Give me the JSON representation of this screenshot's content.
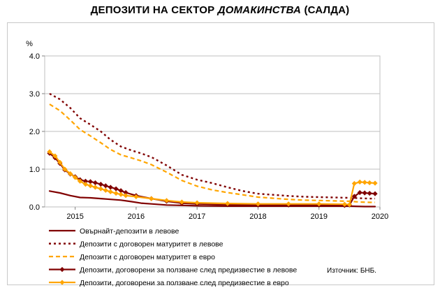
{
  "title": {
    "part1": "ДЕПОЗИТИ НА СЕКТОР ",
    "part2": "ДОМАКИНСТВА",
    "part3": " (САЛДА)"
  },
  "source": "Източник: БНБ.",
  "chart_data": {
    "type": "line",
    "title": "ДЕПОЗИТИ НА СЕКТОР ДОМАКИНСТВА (САЛДА)",
    "ylabel": "%",
    "ylim": [
      0,
      4.0
    ],
    "yticks": [
      "0.0",
      "1.0",
      "2.0",
      "3.0",
      "4.0"
    ],
    "xlim": [
      2014.5,
      2020.0
    ],
    "xticks": [
      "2015",
      "2016",
      "2017",
      "2018",
      "2019",
      "2020"
    ],
    "grid": true,
    "legend_position": "bottom",
    "series": [
      {
        "name": "Овърнайт-депозити в левове",
        "color": "#800000",
        "style": "solid",
        "x": [
          2014.58,
          2014.75,
          2014.92,
          2015.08,
          2015.25,
          2015.42,
          2015.58,
          2015.75,
          2015.92,
          2016.08,
          2016.25,
          2016.5,
          2016.75,
          2017.0,
          2017.5,
          2018.0,
          2018.5,
          2019.0,
          2019.5,
          2019.75,
          2019.92
        ],
        "values": [
          0.42,
          0.37,
          0.3,
          0.25,
          0.24,
          0.22,
          0.2,
          0.18,
          0.14,
          0.1,
          0.08,
          0.05,
          0.04,
          0.03,
          0.02,
          0.02,
          0.02,
          0.02,
          0.02,
          0.01,
          0.01
        ]
      },
      {
        "name": "Депозити с договорен матуритет в левове",
        "color": "#800000",
        "style": "dotted",
        "x": [
          2014.58,
          2014.75,
          2014.92,
          2015.08,
          2015.25,
          2015.42,
          2015.58,
          2015.75,
          2015.92,
          2016.08,
          2016.25,
          2016.5,
          2016.75,
          2017.0,
          2017.25,
          2017.5,
          2017.75,
          2018.0,
          2018.25,
          2018.5,
          2018.75,
          2019.0,
          2019.25,
          2019.5,
          2019.67,
          2019.83,
          2019.92
        ],
        "values": [
          3.0,
          2.85,
          2.62,
          2.35,
          2.18,
          2.0,
          1.78,
          1.6,
          1.5,
          1.42,
          1.32,
          1.1,
          0.85,
          0.72,
          0.63,
          0.52,
          0.42,
          0.35,
          0.32,
          0.29,
          0.27,
          0.26,
          0.25,
          0.24,
          0.23,
          0.22,
          0.22
        ]
      },
      {
        "name": "Депозити с договорен матуритет в евро",
        "color": "#FFA500",
        "style": "dashed",
        "x": [
          2014.58,
          2014.75,
          2014.92,
          2015.08,
          2015.25,
          2015.42,
          2015.58,
          2015.75,
          2015.92,
          2016.08,
          2016.25,
          2016.5,
          2016.75,
          2017.0,
          2017.25,
          2017.5,
          2017.75,
          2018.0,
          2018.25,
          2018.5,
          2018.75,
          2019.0,
          2019.25,
          2019.5,
          2019.67,
          2019.83,
          2019.92
        ],
        "values": [
          2.72,
          2.55,
          2.3,
          2.05,
          1.88,
          1.7,
          1.52,
          1.38,
          1.3,
          1.22,
          1.12,
          0.92,
          0.7,
          0.55,
          0.45,
          0.38,
          0.32,
          0.26,
          0.23,
          0.2,
          0.18,
          0.17,
          0.16,
          0.15,
          0.13,
          0.12,
          0.12
        ]
      },
      {
        "name": "Депозити, договорени за ползване след предизвестие в левове",
        "color": "#800000",
        "style": "solid-diamond",
        "x": [
          2014.58,
          2014.67,
          2014.75,
          2014.83,
          2014.92,
          2015.0,
          2015.08,
          2015.17,
          2015.25,
          2015.33,
          2015.42,
          2015.5,
          2015.58,
          2015.67,
          2015.75,
          2015.83,
          2016.0,
          2016.25,
          2016.5,
          2016.75,
          2017.0,
          2017.5,
          2018.0,
          2018.5,
          2019.0,
          2019.42,
          2019.5,
          2019.58,
          2019.67,
          2019.75,
          2019.83,
          2019.92
        ],
        "values": [
          1.42,
          1.3,
          1.15,
          0.98,
          0.87,
          0.8,
          0.72,
          0.68,
          0.67,
          0.64,
          0.6,
          0.56,
          0.52,
          0.48,
          0.43,
          0.38,
          0.3,
          0.22,
          0.15,
          0.1,
          0.08,
          0.06,
          0.05,
          0.05,
          0.05,
          0.04,
          0.05,
          0.28,
          0.38,
          0.37,
          0.36,
          0.35
        ]
      },
      {
        "name": "Депозити, договорени за ползване след предизвестие в евро",
        "color": "#FFA500",
        "style": "solid-diamond",
        "x": [
          2014.58,
          2014.67,
          2014.75,
          2014.83,
          2014.92,
          2015.0,
          2015.08,
          2015.17,
          2015.25,
          2015.33,
          2015.42,
          2015.5,
          2015.58,
          2015.67,
          2015.75,
          2015.83,
          2016.0,
          2016.25,
          2016.5,
          2016.75,
          2017.0,
          2017.5,
          2018.0,
          2018.5,
          2019.0,
          2019.42,
          2019.5,
          2019.58,
          2019.67,
          2019.75,
          2019.83,
          2019.92
        ],
        "values": [
          1.46,
          1.35,
          1.18,
          1.0,
          0.88,
          0.78,
          0.68,
          0.6,
          0.56,
          0.52,
          0.48,
          0.44,
          0.4,
          0.36,
          0.33,
          0.3,
          0.27,
          0.22,
          0.17,
          0.13,
          0.11,
          0.09,
          0.08,
          0.08,
          0.08,
          0.07,
          0.06,
          0.62,
          0.66,
          0.65,
          0.64,
          0.63
        ]
      }
    ]
  }
}
